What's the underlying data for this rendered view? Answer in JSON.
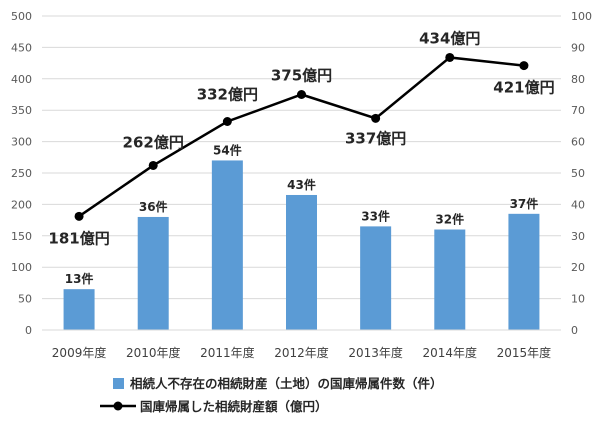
{
  "chart_data": {
    "type": "bar",
    "categories": [
      "2009年度",
      "2010年度",
      "2011年度",
      "2012年度",
      "2013年度",
      "2014年度",
      "2015年度"
    ],
    "series": [
      {
        "name": "相続人不存在の相続財産（土地）の国庫帰属件数（件）",
        "type": "bar",
        "axis": "right",
        "values": [
          13,
          36,
          54,
          43,
          33,
          32,
          37
        ],
        "labels": [
          "13件",
          "36件",
          "54件",
          "43件",
          "33件",
          "32件",
          "37件"
        ],
        "color": "#5b9bd5"
      },
      {
        "name": "国庫帰属した相続財産額（億円）",
        "type": "line",
        "axis": "left",
        "values": [
          181,
          262,
          332,
          375,
          337,
          434,
          421
        ],
        "labels": [
          "181億円",
          "262億円",
          "332億円",
          "375億円",
          "337億円",
          "434億円",
          "421億円"
        ],
        "color": "#000000"
      }
    ],
    "y_left": {
      "min": 0,
      "max": 500,
      "step": 50,
      "ticks": [
        "0",
        "50",
        "100",
        "150",
        "200",
        "250",
        "300",
        "350",
        "400",
        "450",
        "500"
      ]
    },
    "y_right": {
      "min": 0,
      "max": 100,
      "step": 10,
      "ticks": [
        "0",
        "10",
        "20",
        "30",
        "40",
        "50",
        "60",
        "70",
        "80",
        "90",
        "100"
      ]
    },
    "grid": true,
    "legend_position": "bottom"
  }
}
